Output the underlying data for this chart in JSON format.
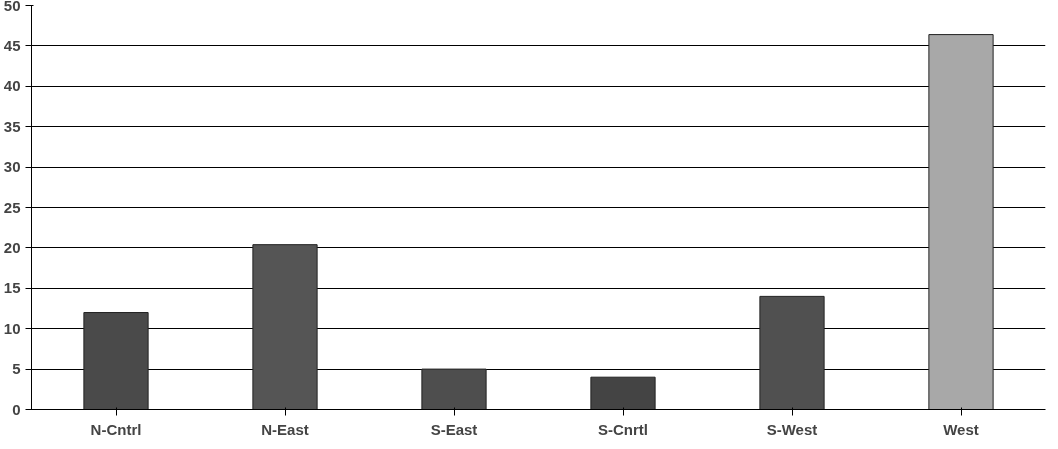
{
  "chart_data": {
    "type": "bar",
    "categories": [
      "N-Cntrl",
      "N-East",
      "S-East",
      "S-Cnrtl",
      "S-West",
      "West"
    ],
    "values": [
      12,
      20.4,
      5,
      4,
      14,
      46.4
    ],
    "colors": [
      "#4a4a4a",
      "#555555",
      "#4e4e4e",
      "#444444",
      "#505050",
      "#a8a8a8"
    ],
    "ylim": [
      0,
      50
    ],
    "yticks": [
      0,
      5,
      10,
      15,
      20,
      25,
      30,
      35,
      40,
      45,
      50
    ],
    "grid": "y"
  }
}
